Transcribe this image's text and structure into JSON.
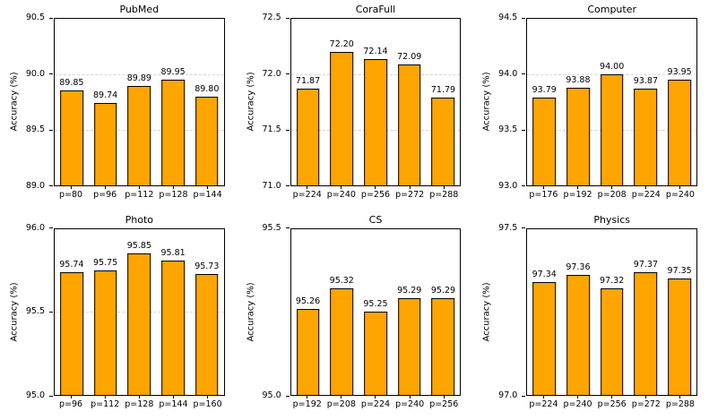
{
  "figure": {
    "background": "#ffffff",
    "bar_fill": "#FFA500",
    "bar_edge": "#000000",
    "grid_color": "#d6d6d6",
    "axis_color": "#000000"
  },
  "chart_data": [
    {
      "type": "bar",
      "title": "PubMed",
      "ylabel": "Accuracy (%)",
      "categories": [
        "p=80",
        "p=96",
        "p=112",
        "p=128",
        "p=144"
      ],
      "values": [
        89.85,
        89.74,
        89.89,
        89.95,
        89.8
      ],
      "value_labels": [
        "89.85",
        "89.74",
        "89.89",
        "89.95",
        "89.80"
      ],
      "ylim": [
        89.0,
        90.5
      ],
      "ytick_values": [
        89.0,
        89.5,
        90.0,
        90.5
      ],
      "ytick_labels": [
        "89.0",
        "89.5",
        "90.0",
        "90.5"
      ],
      "grid": true,
      "legend": false
    },
    {
      "type": "bar",
      "title": "CoraFull",
      "ylabel": "Accuracy (%)",
      "categories": [
        "p=224",
        "p=240",
        "p=256",
        "p=272",
        "p=288"
      ],
      "values": [
        71.87,
        72.2,
        72.14,
        72.09,
        71.79
      ],
      "value_labels": [
        "71.87",
        "72.20",
        "72.14",
        "72.09",
        "71.79"
      ],
      "ylim": [
        71.0,
        72.5
      ],
      "ytick_values": [
        71.0,
        71.5,
        72.0,
        72.5
      ],
      "ytick_labels": [
        "71.0",
        "71.5",
        "72.0",
        "72.5"
      ],
      "grid": true,
      "legend": false
    },
    {
      "type": "bar",
      "title": "Computer",
      "ylabel": "Accuracy (%)",
      "categories": [
        "p=176",
        "p=192",
        "p=208",
        "p=224",
        "p=240"
      ],
      "values": [
        93.79,
        93.88,
        94.0,
        93.87,
        93.95
      ],
      "value_labels": [
        "93.79",
        "93.88",
        "94.00",
        "93.87",
        "93.95"
      ],
      "ylim": [
        93.0,
        94.5
      ],
      "ytick_values": [
        93.0,
        93.5,
        94.0,
        94.5
      ],
      "ytick_labels": [
        "93.0",
        "93.5",
        "94.0",
        "94.5"
      ],
      "grid": true,
      "legend": false
    },
    {
      "type": "bar",
      "title": "Photo",
      "ylabel": "Accuracy (%)",
      "categories": [
        "p=96",
        "p=112",
        "p=128",
        "p=144",
        "p=160"
      ],
      "values": [
        95.74,
        95.75,
        95.85,
        95.81,
        95.73
      ],
      "value_labels": [
        "95.74",
        "95.75",
        "95.85",
        "95.81",
        "95.73"
      ],
      "ylim": [
        95.0,
        96.0
      ],
      "ytick_values": [
        95.0,
        95.5,
        96.0
      ],
      "ytick_labels": [
        "95.0",
        "95.5",
        "96.0"
      ],
      "grid": true,
      "legend": false
    },
    {
      "type": "bar",
      "title": "CS",
      "ylabel": "Accuracy (%)",
      "categories": [
        "p=192",
        "p=208",
        "p=224",
        "p=240",
        "p=256"
      ],
      "values": [
        95.26,
        95.32,
        95.25,
        95.29,
        95.29
      ],
      "value_labels": [
        "95.26",
        "95.32",
        "95.25",
        "95.29",
        "95.29"
      ],
      "ylim": [
        95.0,
        95.5
      ],
      "ytick_values": [
        95.0,
        95.5
      ],
      "ytick_labels": [
        "95.0",
        "95.5"
      ],
      "grid": true,
      "legend": false
    },
    {
      "type": "bar",
      "title": "Physics",
      "ylabel": "Accuracy (%)",
      "categories": [
        "p=224",
        "p=240",
        "p=256",
        "p=272",
        "p=288"
      ],
      "values": [
        97.34,
        97.36,
        97.32,
        97.37,
        97.35
      ],
      "value_labels": [
        "97.34",
        "97.36",
        "97.32",
        "97.37",
        "97.35"
      ],
      "ylim": [
        97.0,
        97.5
      ],
      "ytick_values": [
        97.0,
        97.5
      ],
      "ytick_labels": [
        "97.0",
        "97.5"
      ],
      "grid": true,
      "legend": false
    }
  ]
}
